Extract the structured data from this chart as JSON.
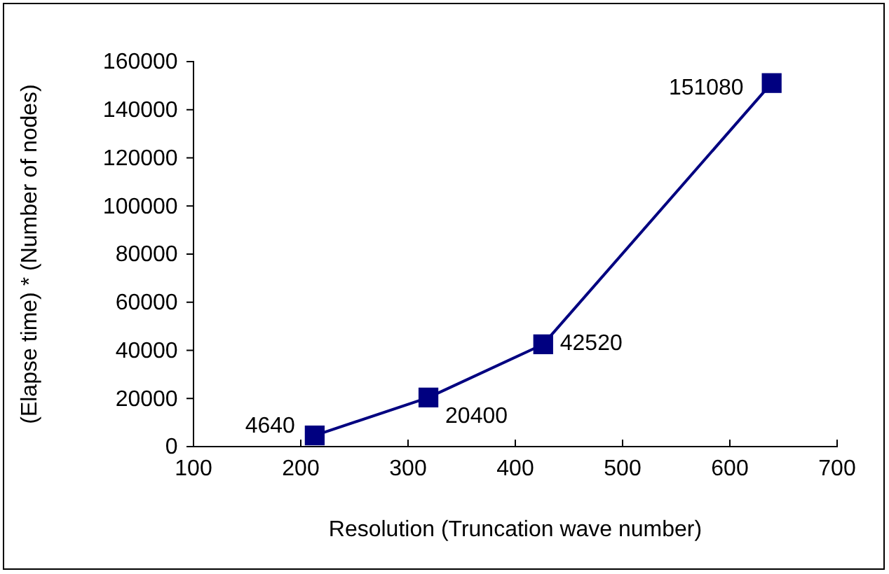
{
  "chart_data": {
    "type": "line",
    "xlabel": "Resolution (Truncation wave number)",
    "ylabel": "(Elapse time) * (Number of nodes)",
    "x": [
      213,
      319,
      426,
      639
    ],
    "series": [
      {
        "color": "#000080",
        "values": [
          4640,
          20400,
          42520,
          151080
        ]
      }
    ],
    "xlim": [
      100,
      700
    ],
    "xticks": [
      100,
      200,
      300,
      400,
      500,
      600,
      700
    ],
    "ylim": [
      0,
      160000
    ],
    "yticks": [
      0,
      20000,
      40000,
      60000,
      80000,
      100000,
      120000,
      140000,
      160000
    ],
    "grid": false,
    "marker": "square",
    "line_style": "solid",
    "data_labels": true
  }
}
